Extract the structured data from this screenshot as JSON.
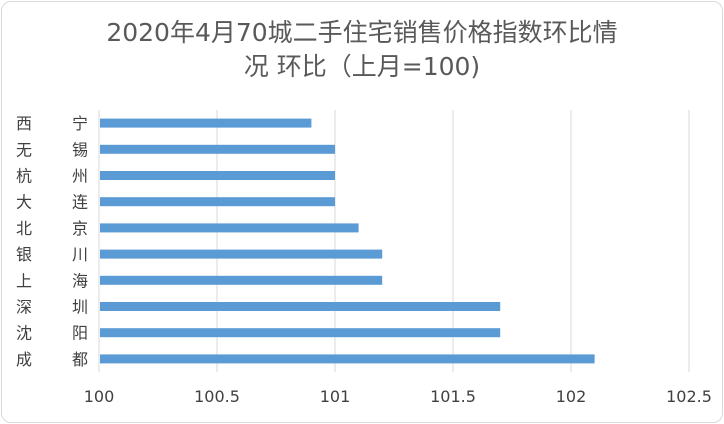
{
  "chart_data": {
    "type": "bar",
    "orientation": "horizontal",
    "title_line1": "2020年4月70城二手住宅销售价格指数环比情",
    "title_line2": "况 环比（上月=100)",
    "categories": [
      "西　宁",
      "无　锡",
      "杭　州",
      "大　连",
      "北　京",
      "银　川",
      "上　海",
      "深　圳",
      "沈　阳",
      "成　都"
    ],
    "series": [
      {
        "values": [
          100.9,
          101.0,
          101.0,
          101.0,
          101.1,
          101.2,
          101.2,
          101.7,
          101.7,
          102.1
        ]
      }
    ],
    "xlim": [
      100,
      102.5
    ],
    "xticks": [
      "100",
      "100.5",
      "101",
      "101.5",
      "102",
      "102.5"
    ],
    "grid": true,
    "bar_color": "#5b9bd5"
  }
}
